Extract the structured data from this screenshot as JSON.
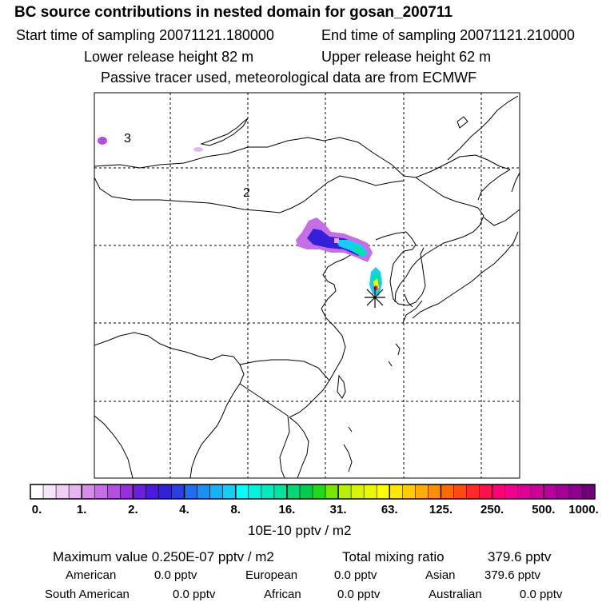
{
  "header": {
    "title": "BC  source contributions in nested domain for gosan_200711",
    "start_time": "Start time of sampling 20071121.180000",
    "end_time": "End time of sampling 20071121.210000",
    "lower_height": "Lower release height   82 m",
    "upper_height": "Upper release height   62 m",
    "tracer_note": "Passive tracer used, meteorological data are from ECMWF"
  },
  "map": {
    "region_labels": [
      "3",
      "2"
    ],
    "receptor_marker": "gosan-receptor-star"
  },
  "colorbar": {
    "ticks": [
      "0.",
      "1.",
      "2.",
      "4.",
      "8.",
      "16.",
      "31.",
      "63.",
      "125.",
      "250.",
      "500.",
      "1000."
    ],
    "colors": [
      [
        "#ffffff",
        "#f7e6f9",
        "#efd0f4",
        "#e6b6f0"
      ],
      [
        "#d68ee9",
        "#c66ee5",
        "#b24ee2",
        "#9a2edf"
      ],
      [
        "#6d1fe0",
        "#4a1ae0",
        "#3320d8",
        "#2a40e6"
      ],
      [
        "#1f6ff0",
        "#1a90f4",
        "#18b0f6",
        "#16cdf6"
      ],
      [
        "#00ffff",
        "#00f5e0",
        "#00ecc0",
        "#00e4a0"
      ],
      [
        "#00d878",
        "#00cc4e",
        "#22d81a",
        "#78e600"
      ],
      [
        "#b8f000",
        "#d8f400",
        "#ecf800",
        "#ffff00"
      ],
      [
        "#ffe800",
        "#ffcc00",
        "#ffae00",
        "#ff8e00"
      ],
      [
        "#ff6a00",
        "#ff4a10",
        "#ff2a2a",
        "#ff1050"
      ],
      [
        "#ff0078",
        "#f0008c",
        "#e00098",
        "#cc009c"
      ],
      [
        "#b8009a",
        "#a40096",
        "#8e0090",
        "#70007a"
      ]
    ],
    "units": "10E-10 pptv / m2"
  },
  "summary": {
    "max_value": "Maximum value  0.250E-07 pptv / m2",
    "total_mixing": "Total mixing ratio",
    "total_value": "379.6 pptv",
    "american_label": "American",
    "american_value": "0.0 pptv",
    "european_label": "European",
    "european_value": "0.0 pptv",
    "asian_label": "Asian",
    "asian_value": "379.6 pptv",
    "south_american_label": "South American",
    "south_american_value": "0.0 pptv",
    "african_label": "African",
    "african_value": "0.0 pptv",
    "australian_label": "Australian",
    "australian_value": "0.0 pptv"
  }
}
